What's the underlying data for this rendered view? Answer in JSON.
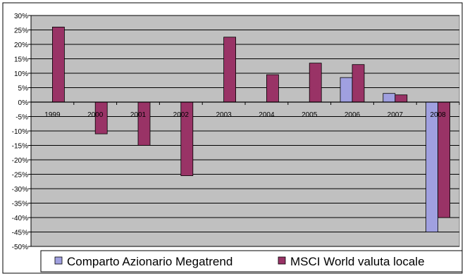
{
  "chart_data": {
    "type": "bar",
    "categories": [
      "1999",
      "2000",
      "2001",
      "2002",
      "2003",
      "2004",
      "2005",
      "2006",
      "2007",
      "2008"
    ],
    "series": [
      {
        "name": "Comparto Azionario Megatrend",
        "color": "#a0a0e0",
        "values": [
          null,
          null,
          null,
          null,
          null,
          null,
          null,
          8.5,
          3.0,
          -45.0
        ]
      },
      {
        "name": "MSCI World valuta locale",
        "color": "#993366",
        "values": [
          26.0,
          -11.0,
          -15.0,
          -25.5,
          22.5,
          9.5,
          13.5,
          13.0,
          2.5,
          -40.0
        ]
      }
    ],
    "ylim": [
      -50,
      30
    ],
    "yticks": [
      30,
      25,
      20,
      15,
      10,
      5,
      0,
      -5,
      -10,
      -15,
      -20,
      -25,
      -30,
      -35,
      -40,
      -45,
      -50
    ],
    "ytick_labels": [
      "30%",
      "25%",
      "20%",
      "15%",
      "10%",
      "5%",
      "0%",
      "-5%",
      "-10%",
      "-15%",
      "-20%",
      "-25%",
      "-30%",
      "-35%",
      "-40%",
      "-45%",
      "-50%"
    ],
    "grid": true,
    "legend": "bottom",
    "plot_bg": "#c0c0c0"
  }
}
